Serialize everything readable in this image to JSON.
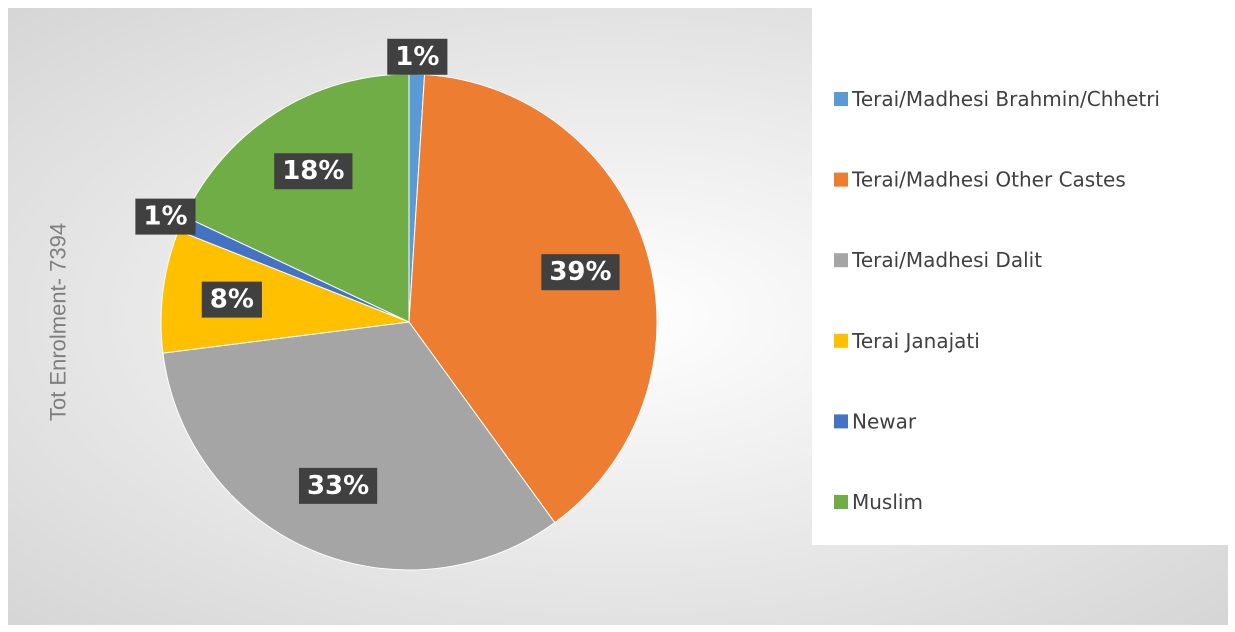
{
  "chart_data": {
    "type": "pie",
    "y_label": "Tot Enrolment- 7394",
    "categories": [
      "Terai/Madhesi Brahmin/Chhetri",
      "Terai/Madhesi Other Castes",
      "Terai/Madhesi Dalit",
      "Terai Janajati",
      "Newar",
      "Muslim"
    ],
    "values": [
      1,
      39,
      33,
      8,
      1,
      18
    ],
    "value_labels": [
      "1%",
      "39%",
      "33%",
      "8%",
      "1%",
      "18%"
    ],
    "colors": [
      "#5b9bd5",
      "#ed7d31",
      "#a5a5a5",
      "#ffc000",
      "#4472c4",
      "#70ad47"
    ],
    "legend": "right"
  }
}
